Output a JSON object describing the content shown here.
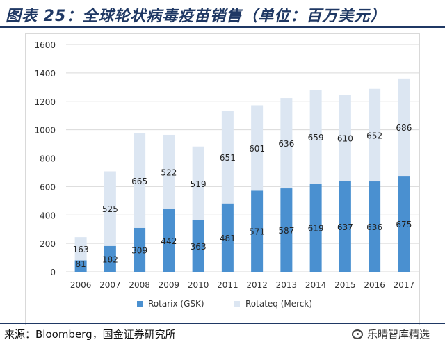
{
  "title": "图表 25：全球轮状病毒疫苗销售（单位：百万美元）",
  "source": "来源：Bloomberg，国金证券研究所",
  "watermark": "乐晴智库精选",
  "colors": {
    "gsk": "#4a90d0",
    "merck": "#dce6f2",
    "accent": "#1f3864"
  },
  "chart_data": {
    "type": "bar",
    "stacked": true,
    "categories": [
      "2006",
      "2007",
      "2008",
      "2009",
      "2010",
      "2011",
      "2012",
      "2013",
      "2014",
      "2015",
      "2016",
      "2017"
    ],
    "series": [
      {
        "name": "Rotarix (GSK)",
        "values": [
          81,
          182,
          309,
          442,
          363,
          481,
          571,
          587,
          619,
          637,
          636,
          675
        ]
      },
      {
        "name": "Rotateq (Merck)",
        "values": [
          163,
          525,
          665,
          522,
          519,
          651,
          601,
          636,
          659,
          610,
          652,
          686
        ]
      }
    ],
    "ylim": [
      0,
      1600
    ],
    "yticks": [
      0,
      200,
      400,
      600,
      800,
      1000,
      1200,
      1400,
      1600
    ],
    "grid": true,
    "legend": "bottom"
  }
}
